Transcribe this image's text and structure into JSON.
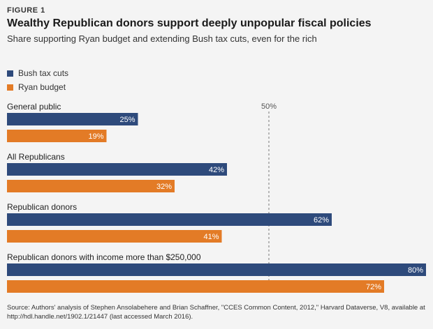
{
  "figure_label": "FIGURE 1",
  "source": "Source: Authors' analysis of Stephen Ansolabehere and Brian Schaffner, \"CCES Common Content, 2012,\" Harvard Dataverse, V8, available at http://hdl.handle.net/1902.1/21447 (last accessed March 2016).",
  "colors": {
    "bush": "#2e4a7b",
    "ryan": "#e37b26",
    "background": "#f4f4f4"
  },
  "chart_data": {
    "type": "bar",
    "orientation": "horizontal",
    "title": "Wealthy Republican donors support deeply unpopular fiscal policies",
    "subtitle": "Share supporting Ryan budget and extending Bush tax cuts, even for the rich",
    "categories": [
      "General public",
      "All Republicans",
      "Republican donors",
      "Republican donors with income more than $250,000"
    ],
    "series": [
      {
        "name": "Bush tax cuts",
        "values": [
          25,
          42,
          62,
          80
        ]
      },
      {
        "name": "Ryan budget",
        "values": [
          19,
          32,
          41,
          72
        ]
      }
    ],
    "value_suffix": "%",
    "xlim": [
      0,
      80
    ],
    "reference_line": {
      "value": 50,
      "label": "50%"
    },
    "legend_position": "top-left"
  }
}
